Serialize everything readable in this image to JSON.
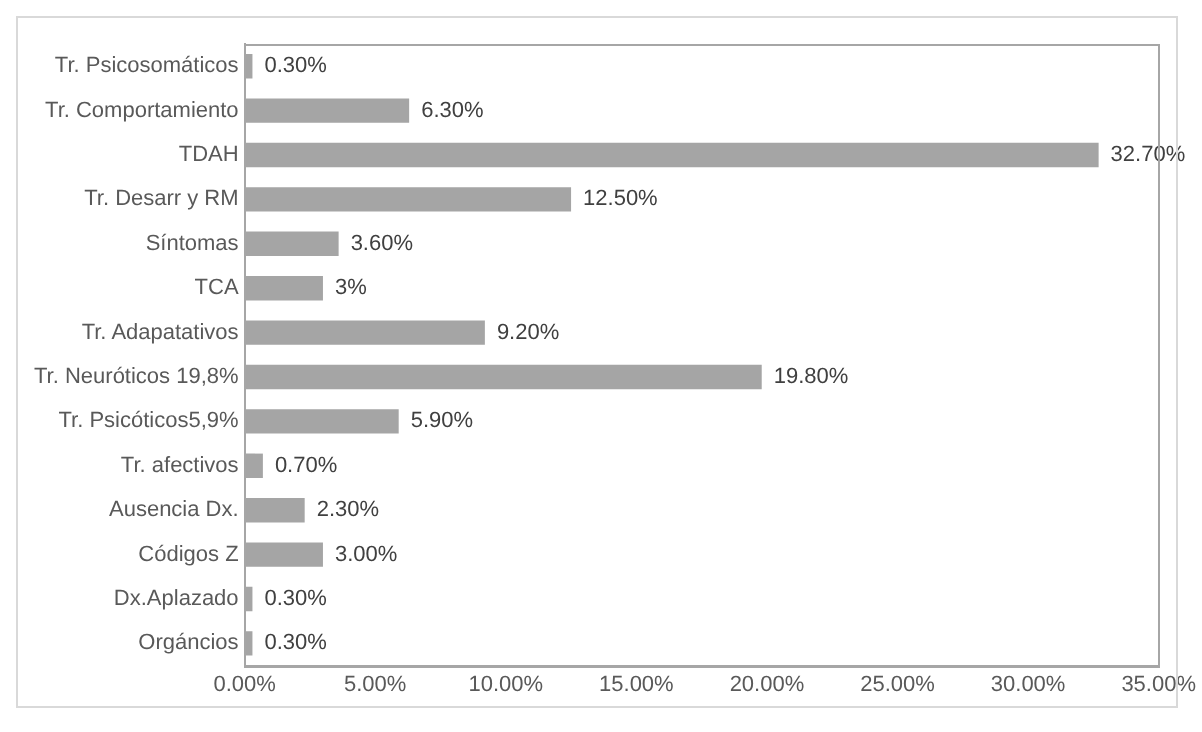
{
  "chart_data": {
    "type": "bar",
    "orientation": "horizontal",
    "categories": [
      "Tr. Psicosomáticos",
      "Tr. Comportamiento",
      "TDAH",
      "Tr. Desarr y RM",
      "Síntomas",
      "TCA",
      "Tr. Adapatativos",
      "Tr. Neuróticos 19,8%",
      "Tr. Psicóticos5,9%",
      "Tr. afectivos",
      "Ausencia Dx.",
      "Códigos Z",
      "Dx.Aplazado",
      "Orgáncios"
    ],
    "values": [
      0.3,
      6.3,
      32.7,
      12.5,
      3.6,
      3,
      9.2,
      19.8,
      5.9,
      0.7,
      2.3,
      3,
      0.3,
      0.3
    ],
    "value_labels": [
      "0.30%",
      "6.30%",
      "32.70%",
      "12.50%",
      "3.60%",
      "3%",
      "9.20%",
      "19.80%",
      "5.90%",
      "0.70%",
      "2.30%",
      "3.00%",
      "0.30%",
      "0.30%"
    ],
    "color": "#a5a5a5",
    "xlim": [
      0,
      35
    ],
    "xticks": [
      {
        "value": 0,
        "label": "0.00%"
      },
      {
        "value": 5,
        "label": "5.00%"
      },
      {
        "value": 10,
        "label": "10.00%"
      },
      {
        "value": 15,
        "label": "15.00%"
      },
      {
        "value": 20,
        "label": "20.00%"
      },
      {
        "value": 25,
        "label": "25.00%"
      },
      {
        "value": 30,
        "label": "30.00%"
      },
      {
        "value": 35,
        "label": "35.00%"
      }
    ],
    "grid": false,
    "legend": false
  }
}
